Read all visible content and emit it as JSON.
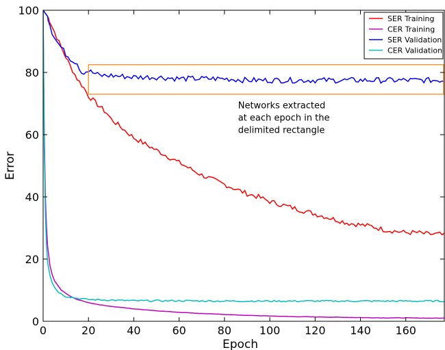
{
  "chart_data": {
    "type": "line",
    "xlabel": "Epoch",
    "ylabel": "Error",
    "xlim": [
      0,
      177
    ],
    "ylim": [
      0,
      100
    ],
    "xticks": [
      0,
      20,
      40,
      60,
      80,
      100,
      120,
      140,
      160
    ],
    "yticks": [
      0,
      20,
      40,
      60,
      80,
      100
    ],
    "grid": false,
    "legend_position": "top-right",
    "series": [
      {
        "name": "SER Training",
        "color": "#ff0000",
        "points": [
          [
            0,
            100
          ],
          [
            2,
            98
          ],
          [
            5,
            93
          ],
          [
            8,
            88
          ],
          [
            10,
            85
          ],
          [
            12,
            82
          ],
          [
            15,
            78
          ],
          [
            18,
            75
          ],
          [
            20,
            72.5
          ],
          [
            25,
            69
          ],
          [
            28,
            67
          ],
          [
            30,
            65
          ],
          [
            35,
            62
          ],
          [
            40,
            59
          ],
          [
            45,
            57
          ],
          [
            50,
            55
          ],
          [
            55,
            53
          ],
          [
            60,
            51
          ],
          [
            65,
            49
          ],
          [
            70,
            47
          ],
          [
            75,
            45.5
          ],
          [
            80,
            44
          ],
          [
            85,
            42.5
          ],
          [
            90,
            41
          ],
          [
            95,
            40
          ],
          [
            100,
            38.5
          ],
          [
            105,
            37.5
          ],
          [
            110,
            36.5
          ],
          [
            115,
            35.5
          ],
          [
            120,
            34.5
          ],
          [
            125,
            33.5
          ],
          [
            130,
            32.5
          ],
          [
            135,
            31.5
          ],
          [
            140,
            31
          ],
          [
            145,
            30.5
          ],
          [
            150,
            29.5
          ],
          [
            155,
            29
          ],
          [
            160,
            28.5
          ],
          [
            165,
            28.5
          ],
          [
            170,
            28
          ],
          [
            175,
            28
          ],
          [
            177,
            27.5
          ]
        ],
        "noise": 0.8
      },
      {
        "name": "CER Training",
        "color": "#bf00bf",
        "points": [
          [
            0,
            100
          ],
          [
            0.5,
            60
          ],
          [
            1,
            40
          ],
          [
            1.5,
            30
          ],
          [
            2,
            24
          ],
          [
            3,
            18
          ],
          [
            4,
            15
          ],
          [
            5,
            13
          ],
          [
            6,
            12
          ],
          [
            7,
            11
          ],
          [
            8,
            10
          ],
          [
            10,
            9
          ],
          [
            12,
            8
          ],
          [
            15,
            7
          ],
          [
            20,
            6
          ],
          [
            25,
            5.3
          ],
          [
            30,
            4.8
          ],
          [
            40,
            4
          ],
          [
            50,
            3.4
          ],
          [
            60,
            2.9
          ],
          [
            70,
            2.5
          ],
          [
            80,
            2.2
          ],
          [
            90,
            1.9
          ],
          [
            100,
            1.7
          ],
          [
            110,
            1.5
          ],
          [
            120,
            1.4
          ],
          [
            130,
            1.3
          ],
          [
            140,
            1.2
          ],
          [
            150,
            1.1
          ],
          [
            160,
            1.1
          ],
          [
            170,
            1.0
          ],
          [
            177,
            1.0
          ]
        ],
        "noise": 0.05
      },
      {
        "name": "SER Validation",
        "color": "#0000ff",
        "points": [
          [
            0,
            100
          ],
          [
            2,
            98
          ],
          [
            4,
            93
          ],
          [
            6,
            90
          ],
          [
            8,
            88
          ],
          [
            10,
            86
          ],
          [
            12,
            84.5
          ],
          [
            15,
            83
          ],
          [
            17,
            80
          ],
          [
            20,
            80.5
          ],
          [
            25,
            79
          ],
          [
            30,
            79
          ],
          [
            40,
            78.5
          ],
          [
            50,
            78.5
          ],
          [
            60,
            78
          ],
          [
            70,
            78
          ],
          [
            80,
            78
          ],
          [
            90,
            77.5
          ],
          [
            100,
            77.5
          ],
          [
            110,
            77.5
          ],
          [
            120,
            77.5
          ],
          [
            130,
            77.5
          ],
          [
            140,
            77.5
          ],
          [
            150,
            77.5
          ],
          [
            160,
            77.5
          ],
          [
            170,
            77.5
          ],
          [
            177,
            77.5
          ]
        ],
        "noise": 0.9
      },
      {
        "name": "CER Validation",
        "color": "#00bfbf",
        "points": [
          [
            0,
            100
          ],
          [
            0.5,
            55
          ],
          [
            1,
            35
          ],
          [
            1.5,
            24
          ],
          [
            2,
            19
          ],
          [
            3,
            15
          ],
          [
            4,
            12.5
          ],
          [
            5,
            11
          ],
          [
            6,
            10
          ],
          [
            7,
            9.3
          ],
          [
            8,
            8.8
          ],
          [
            10,
            8
          ],
          [
            12,
            7.8
          ],
          [
            15,
            7.4
          ],
          [
            20,
            7
          ],
          [
            30,
            6.8
          ],
          [
            40,
            6.6
          ],
          [
            60,
            6.6
          ],
          [
            80,
            6.5
          ],
          [
            100,
            6.5
          ],
          [
            120,
            6.5
          ],
          [
            140,
            6.5
          ],
          [
            160,
            6.5
          ],
          [
            177,
            6.5
          ]
        ],
        "noise": 0.25
      }
    ],
    "annotation": {
      "text_lines": [
        "Networks extracted",
        "at each epoch in the",
        "delimited rectangle"
      ],
      "rect_x": [
        20,
        177
      ],
      "rect_y": [
        73,
        82.5
      ],
      "color": "#ff8c1a",
      "text_x": 86,
      "text_y": [
        68.5,
        64.5,
        60.5
      ]
    }
  }
}
